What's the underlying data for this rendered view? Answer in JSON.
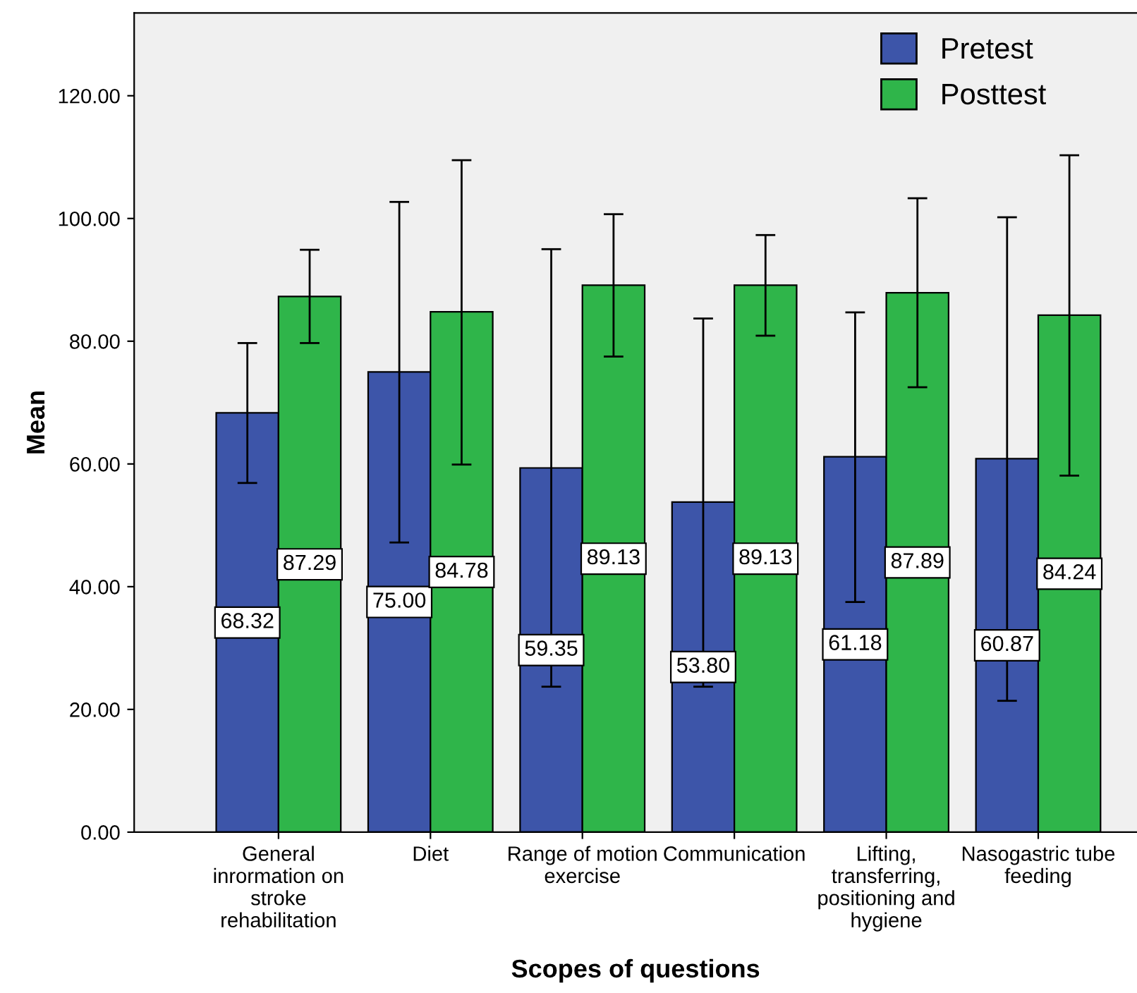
{
  "chart_data": {
    "type": "bar",
    "xlabel": "Scopes of questions",
    "ylabel": "Mean",
    "categories": [
      "General\ninrormation on\nstroke\nrehabilitation",
      "Diet",
      "Range of motion\nexercise",
      "Communication",
      "Lifting,\ntransferring,\npositioning and\nhygiene",
      "Nasogastric tube\nfeeding"
    ],
    "series": [
      {
        "name": "Pretest",
        "color": "#3d55a9",
        "values": [
          68.32,
          75.0,
          59.35,
          53.8,
          61.18,
          60.87
        ],
        "value_labels": [
          "68.32",
          "75.00",
          "59.35",
          "53.80",
          "61.18",
          "60.87"
        ],
        "errors": [
          [
            56.9,
            79.7
          ],
          [
            47.2,
            102.7
          ],
          [
            23.7,
            95.0
          ],
          [
            23.7,
            83.7
          ],
          [
            37.5,
            84.7
          ],
          [
            21.4,
            100.2
          ]
        ]
      },
      {
        "name": "Posttest",
        "color": "#2fb54a",
        "values": [
          87.29,
          84.78,
          89.13,
          89.13,
          87.89,
          84.24
        ],
        "value_labels": [
          "87.29",
          "84.78",
          "89.13",
          "89.13",
          "87.89",
          "84.24"
        ],
        "errors": [
          [
            79.7,
            94.9
          ],
          [
            59.9,
            109.5
          ],
          [
            77.5,
            100.7
          ],
          [
            80.9,
            97.3
          ],
          [
            72.5,
            103.3
          ],
          [
            58.1,
            110.3
          ]
        ]
      }
    ],
    "ylim": [
      0,
      133.5
    ],
    "yticks": [
      {
        "value": 0,
        "label": "0.00"
      },
      {
        "value": 20,
        "label": "20.00"
      },
      {
        "value": 40,
        "label": "40.00"
      },
      {
        "value": 60,
        "label": "60.00"
      },
      {
        "value": 80,
        "label": "80.00"
      },
      {
        "value": 100,
        "label": "100.00"
      },
      {
        "value": 120,
        "label": "120.00"
      }
    ],
    "grid": false,
    "legend": "top right"
  }
}
